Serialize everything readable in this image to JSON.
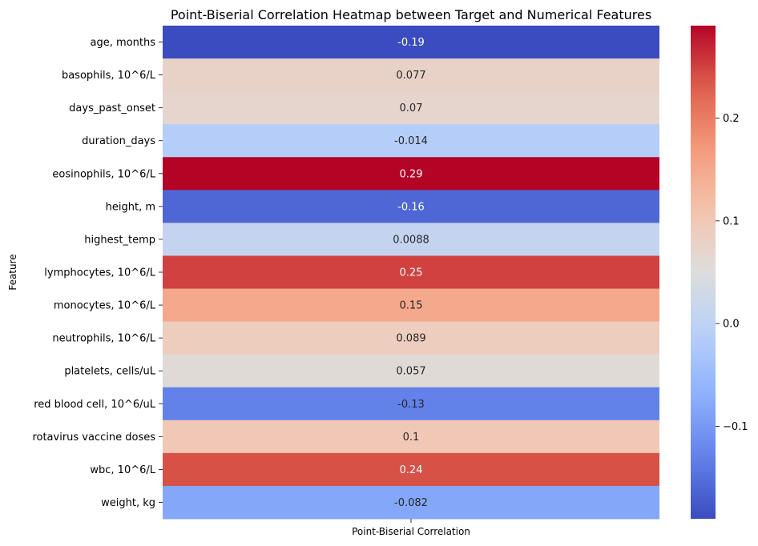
{
  "chart_data": {
    "type": "heatmap",
    "title": "Point-Biserial Correlation Heatmap between Target and Numerical Features",
    "xlabel": "",
    "ylabel": "Feature",
    "columns": [
      "Point-Biserial Correlation"
    ],
    "rows": [
      {
        "feature": "age, months",
        "value": -0.19,
        "label": "-0.19"
      },
      {
        "feature": "basophils, 10^6/L",
        "value": 0.077,
        "label": "0.077"
      },
      {
        "feature": "days_past_onset",
        "value": 0.07,
        "label": "0.07"
      },
      {
        "feature": "duration_days",
        "value": -0.014,
        "label": "-0.014"
      },
      {
        "feature": "eosinophils, 10^6/L",
        "value": 0.29,
        "label": "0.29"
      },
      {
        "feature": "height, m",
        "value": -0.16,
        "label": "-0.16"
      },
      {
        "feature": "highest_temp",
        "value": 0.0088,
        "label": "0.0088"
      },
      {
        "feature": "lymphocytes, 10^6/L",
        "value": 0.25,
        "label": "0.25"
      },
      {
        "feature": "monocytes, 10^6/L",
        "value": 0.15,
        "label": "0.15"
      },
      {
        "feature": "neutrophils, 10^6/L",
        "value": 0.089,
        "label": "0.089"
      },
      {
        "feature": "platelets, cells/uL",
        "value": 0.057,
        "label": "0.057"
      },
      {
        "feature": "red blood cell, 10^6/uL",
        "value": -0.13,
        "label": "-0.13"
      },
      {
        "feature": "rotavirus vaccine doses",
        "value": 0.1,
        "label": "0.1"
      },
      {
        "feature": "wbc, 10^6/L",
        "value": 0.24,
        "label": "0.24"
      },
      {
        "feature": "weight, kg",
        "value": -0.082,
        "label": "-0.082"
      }
    ],
    "colormap": "coolwarm",
    "vmin": -0.19,
    "vmax": 0.29,
    "colorbar": {
      "ticks": [
        -0.1,
        0.0,
        0.1,
        0.2
      ],
      "tick_labels": [
        "−0.1",
        "0.0",
        "0.1",
        "0.2"
      ],
      "placement": "right"
    },
    "grid": false,
    "legend": "none"
  }
}
